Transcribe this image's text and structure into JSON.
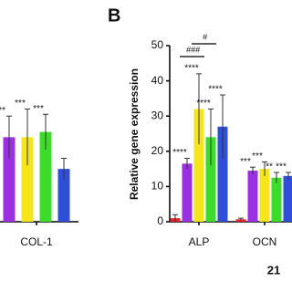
{
  "panel_number": "21",
  "chart_data": [
    {
      "type": "bar",
      "categories": [
        "COL-1"
      ],
      "ylim": [
        0,
        50
      ],
      "series": [
        {
          "color": "#9b30e0",
          "values": [
            24
          ],
          "errors": [
            6
          ],
          "significance": [
            "**"
          ]
        },
        {
          "color": "#f5e61c",
          "values": [
            24
          ],
          "errors": [
            8
          ],
          "significance": [
            "***"
          ]
        },
        {
          "color": "#3ddc2a",
          "values": [
            25.5
          ],
          "errors": [
            5
          ],
          "significance": [
            "***"
          ]
        },
        {
          "color": "#2f4fd8",
          "values": [
            15
          ],
          "errors": [
            3
          ],
          "significance": [
            null
          ]
        }
      ]
    },
    {
      "type": "bar",
      "panel_label": "B",
      "y_label": "Relative gene expression",
      "categories": [
        "ALP",
        "OCN"
      ],
      "ylim": [
        0,
        50
      ],
      "yticks": [
        0,
        10,
        20,
        30,
        40,
        50
      ],
      "series": [
        {
          "color": "#e8242a",
          "values": [
            1,
            0.7
          ],
          "errors": [
            1,
            0.3
          ],
          "significance": [
            null,
            null
          ]
        },
        {
          "color": "#9b30e0",
          "values": [
            16.5,
            14.5
          ],
          "errors": [
            1.5,
            1
          ],
          "significance": [
            "****",
            "***"
          ]
        },
        {
          "color": "#f5e61c",
          "values": [
            32,
            15
          ],
          "errors": [
            10,
            2
          ],
          "significance": [
            "****",
            "***"
          ]
        },
        {
          "color": "#3ddc2a",
          "values": [
            24,
            12.5
          ],
          "errors": [
            8,
            1.5
          ],
          "significance": [
            "****",
            "**"
          ]
        },
        {
          "color": "#2f4fd8",
          "values": [
            27,
            13
          ],
          "errors": [
            9,
            1
          ],
          "significance": [
            "****",
            "***"
          ]
        }
      ],
      "brackets": [
        {
          "label": "###"
        },
        {
          "label": "#"
        }
      ]
    }
  ]
}
